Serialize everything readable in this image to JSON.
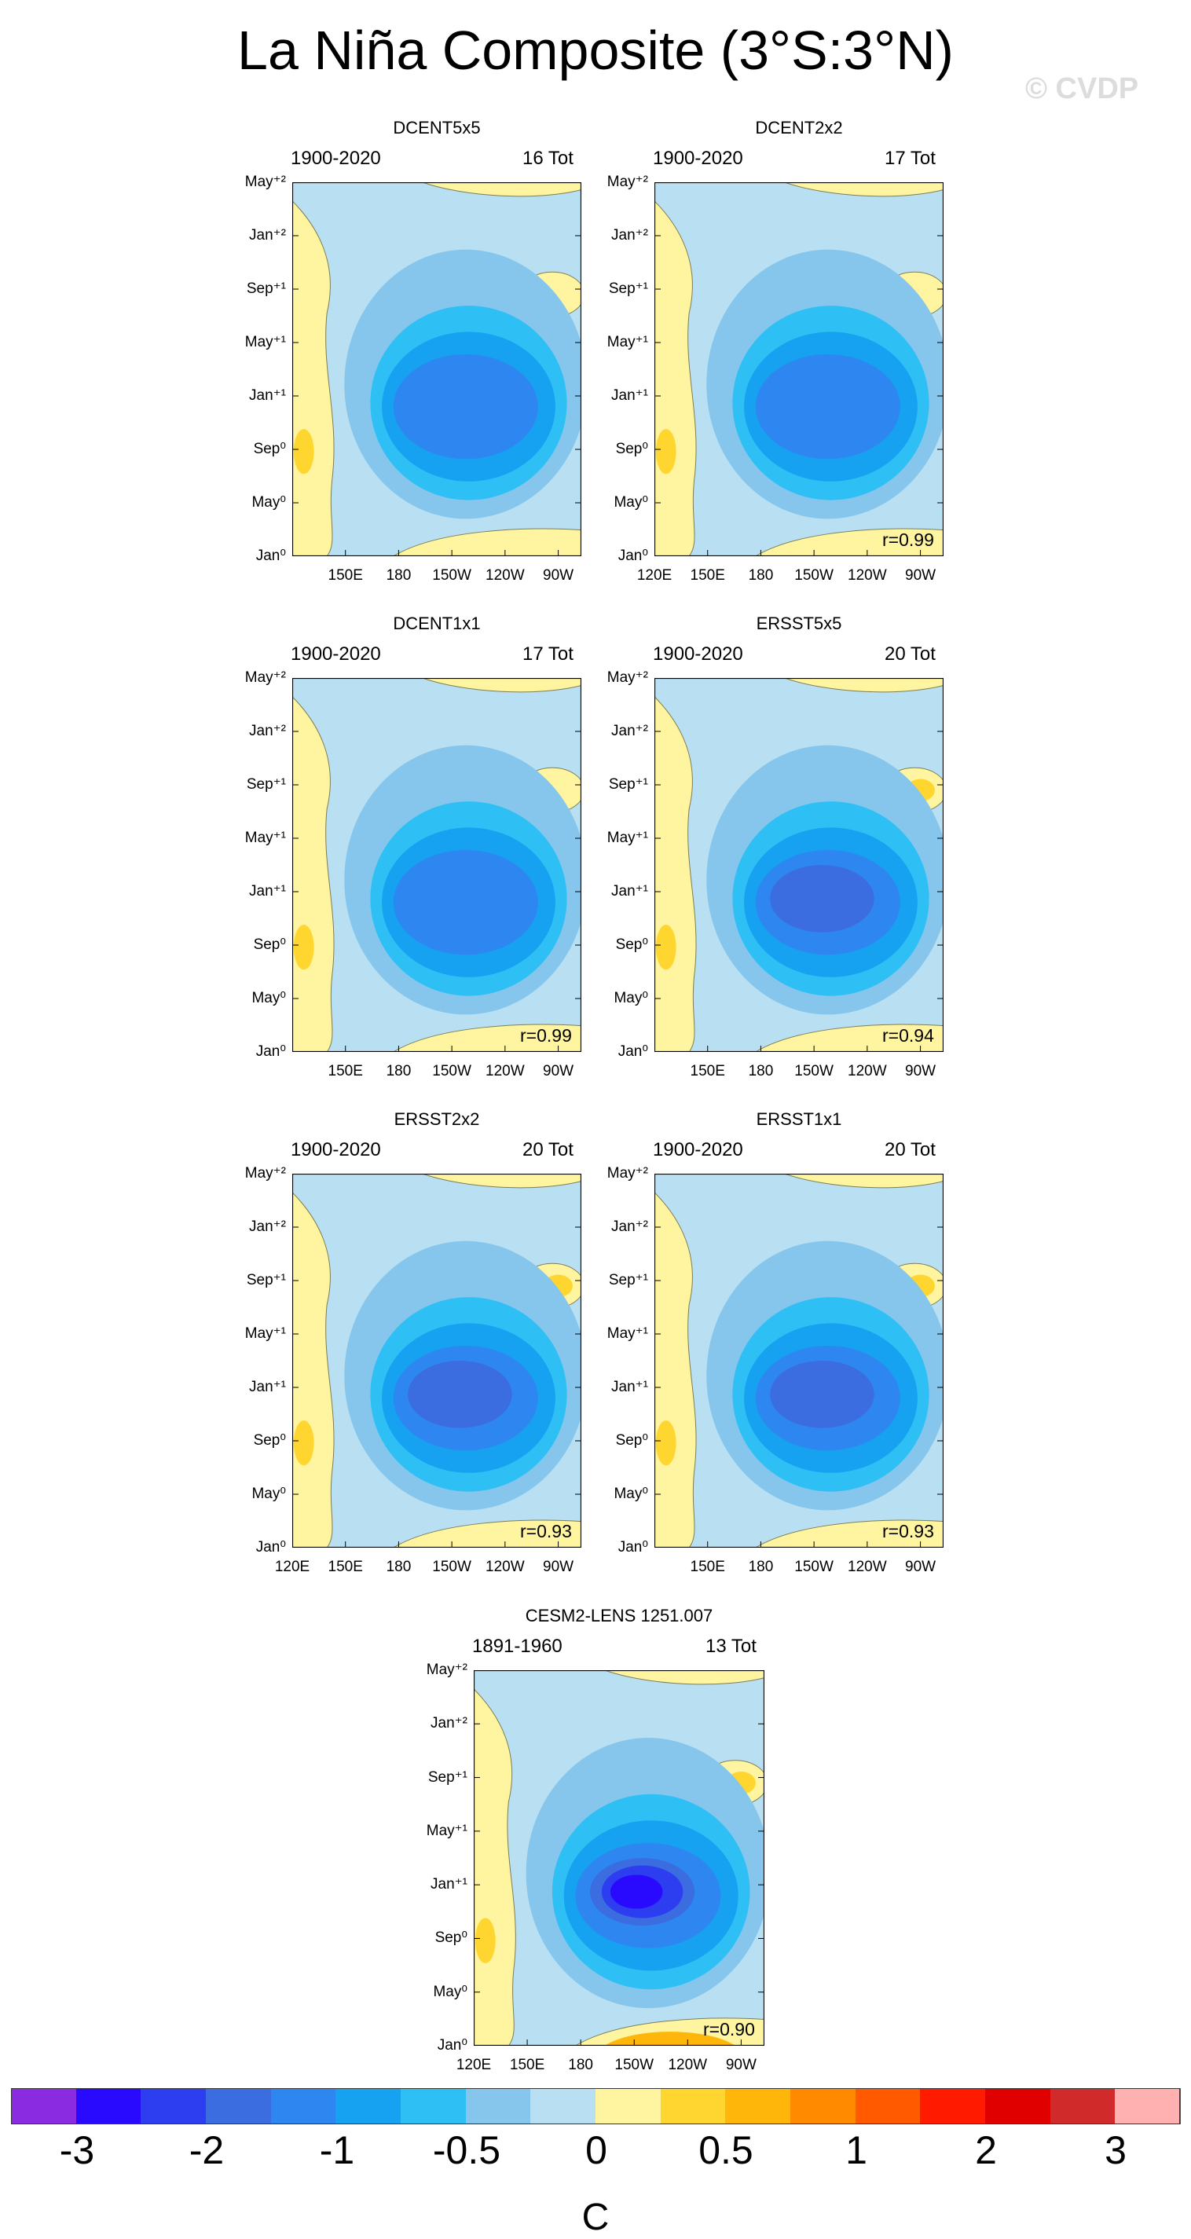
{
  "title": "La Niña Composite (3°S:3°N)",
  "watermark": "© CVDP",
  "units": "C",
  "colors": {
    "levels": [
      "#8a2be2",
      "#2a0aff",
      "#2d3ef0",
      "#3b6de0",
      "#2e86f0",
      "#16a2f0",
      "#2ec0f5",
      "#87c6ec",
      "#b9e0f2",
      "#fff5a0",
      "#ffd630",
      "#ffb60a",
      "#ff8a00",
      "#ff5a00",
      "#ff1a00",
      "#e00000",
      "#d02a2a",
      "#ffb0b0"
    ],
    "plot_background": "#b9e0f2",
    "contour_line": "#7d7d55"
  },
  "colorbar_labels": [
    "-3",
    "-2",
    "-1",
    "-0.5",
    "0",
    "0.5",
    "1",
    "2",
    "3"
  ],
  "chart_data": [
    {
      "type": "heatmap",
      "title": "DCENT5x5",
      "period": "1900-2020",
      "count": "16 Tot",
      "correlation": "",
      "y_ticks": [
        "May⁺²",
        "Jan⁺²",
        "Sep⁺¹",
        "May⁺¹",
        "Jan⁺¹",
        "Sep⁰",
        "May⁰",
        "Jan⁰"
      ],
      "x_ticks": [
        "",
        "150E",
        "180",
        "150W",
        "120W",
        "90W"
      ],
      "min_anomaly": -1.5,
      "max_anomaly": 0.4,
      "core_month": "Jan+1",
      "core_lon": "150W"
    },
    {
      "type": "heatmap",
      "title": "DCENT2x2",
      "period": "1900-2020",
      "count": "17 Tot",
      "correlation": "r=0.99",
      "y_ticks": [
        "May⁺²",
        "Jan⁺²",
        "Sep⁺¹",
        "May⁺¹",
        "Jan⁺¹",
        "Sep⁰",
        "May⁰",
        "Jan⁰"
      ],
      "x_ticks": [
        "120E",
        "150E",
        "180",
        "150W",
        "120W",
        "90W"
      ],
      "min_anomaly": -1.5,
      "max_anomaly": 0.4,
      "core_month": "Jan+1",
      "core_lon": "150W"
    },
    {
      "type": "heatmap",
      "title": "DCENT1x1",
      "period": "1900-2020",
      "count": "17 Tot",
      "correlation": "r=0.99",
      "y_ticks": [
        "May⁺²",
        "Jan⁺²",
        "Sep⁺¹",
        "May⁺¹",
        "Jan⁺¹",
        "Sep⁰",
        "May⁰",
        "Jan⁰"
      ],
      "x_ticks": [
        "",
        "150E",
        "180",
        "150W",
        "120W",
        "90W"
      ],
      "min_anomaly": -1.5,
      "max_anomaly": 0.4,
      "core_month": "Jan+1",
      "core_lon": "150W"
    },
    {
      "type": "heatmap",
      "title": "ERSST5x5",
      "period": "1900-2020",
      "count": "20 Tot",
      "correlation": "r=0.94",
      "y_ticks": [
        "May⁺²",
        "Jan⁺²",
        "Sep⁺¹",
        "May⁺¹",
        "Jan⁺¹",
        "Sep⁰",
        "May⁰",
        "Jan⁰"
      ],
      "x_ticks": [
        "",
        "150E",
        "180",
        "150W",
        "120W",
        "90W"
      ],
      "min_anomaly": -1.7,
      "max_anomaly": 0.5,
      "core_month": "Jan+1",
      "core_lon": "150W"
    },
    {
      "type": "heatmap",
      "title": "ERSST2x2",
      "period": "1900-2020",
      "count": "20 Tot",
      "correlation": "r=0.93",
      "y_ticks": [
        "May⁺²",
        "Jan⁺²",
        "Sep⁺¹",
        "May⁺¹",
        "Jan⁺¹",
        "Sep⁰",
        "May⁰",
        "Jan⁰"
      ],
      "x_ticks": [
        "120E",
        "150E",
        "180",
        "150W",
        "120W",
        "90W"
      ],
      "min_anomaly": -1.8,
      "max_anomaly": 0.6,
      "core_month": "Jan+1",
      "core_lon": "150W"
    },
    {
      "type": "heatmap",
      "title": "ERSST1x1",
      "period": "1900-2020",
      "count": "20 Tot",
      "correlation": "r=0.93",
      "y_ticks": [
        "May⁺²",
        "Jan⁺²",
        "Sep⁺¹",
        "May⁺¹",
        "Jan⁺¹",
        "Sep⁰",
        "May⁰",
        "Jan⁰"
      ],
      "x_ticks": [
        "",
        "150E",
        "180",
        "150W",
        "120W",
        "90W"
      ],
      "min_anomaly": -1.8,
      "max_anomaly": 0.6,
      "core_month": "Jan+1",
      "core_lon": "150W"
    },
    {
      "type": "heatmap",
      "title": "CESM2-LENS 1251.007",
      "period": "1891-1960",
      "count": "13 Tot",
      "correlation": "r=0.90",
      "y_ticks": [
        "May⁺²",
        "Jan⁺²",
        "Sep⁺¹",
        "May⁺¹",
        "Jan⁺¹",
        "Sep⁰",
        "May⁰",
        "Jan⁰"
      ],
      "x_ticks": [
        "120E",
        "150E",
        "180",
        "150W",
        "120W",
        "90W"
      ],
      "min_anomaly": -2.3,
      "max_anomaly": 0.8,
      "core_month": "Jan+1",
      "core_lon": "150W"
    }
  ]
}
